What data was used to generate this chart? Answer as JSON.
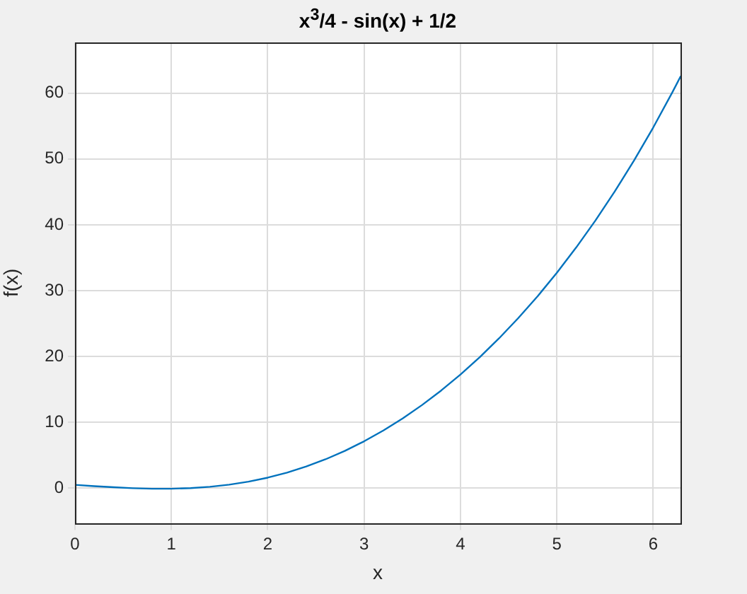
{
  "chart_data": {
    "type": "line",
    "title": "x$^{3}$/4 - sin(x) + 1/2",
    "xlabel": "x",
    "ylabel": "f(x)",
    "x": [
      0,
      0.2,
      0.4,
      0.6,
      0.8,
      1.0,
      1.2,
      1.4,
      1.6,
      1.8,
      2.0,
      2.2,
      2.4,
      2.6,
      2.8,
      3.0,
      3.2,
      3.4,
      3.6,
      3.8,
      4.0,
      4.2,
      4.4,
      4.6,
      4.8,
      5.0,
      5.2,
      5.4,
      5.6,
      5.8,
      6.0,
      6.2,
      6.283
    ],
    "series": [
      {
        "color": "#0072bd",
        "values": [
          0.5,
          0.3,
          0.13,
          -0.01,
          -0.09,
          -0.09,
          0.0,
          0.2,
          0.52,
          0.98,
          1.59,
          2.35,
          3.28,
          4.38,
          5.65,
          7.11,
          8.75,
          10.58,
          12.61,
          14.83,
          17.26,
          19.89,
          22.75,
          25.83,
          29.14,
          32.71,
          36.54,
          40.64,
          45.04,
          49.74,
          54.78,
          60.17,
          62.51
        ]
      }
    ],
    "xlim": [
      0,
      6.283
    ],
    "ylim": [
      -5.3,
      67.7
    ],
    "xticks": [
      0,
      1,
      2,
      3,
      4,
      5,
      6
    ],
    "yticks": [
      0,
      10,
      20,
      30,
      40,
      50,
      60
    ],
    "grid": true,
    "legend": false,
    "marker": "none",
    "line_style": "solid"
  }
}
